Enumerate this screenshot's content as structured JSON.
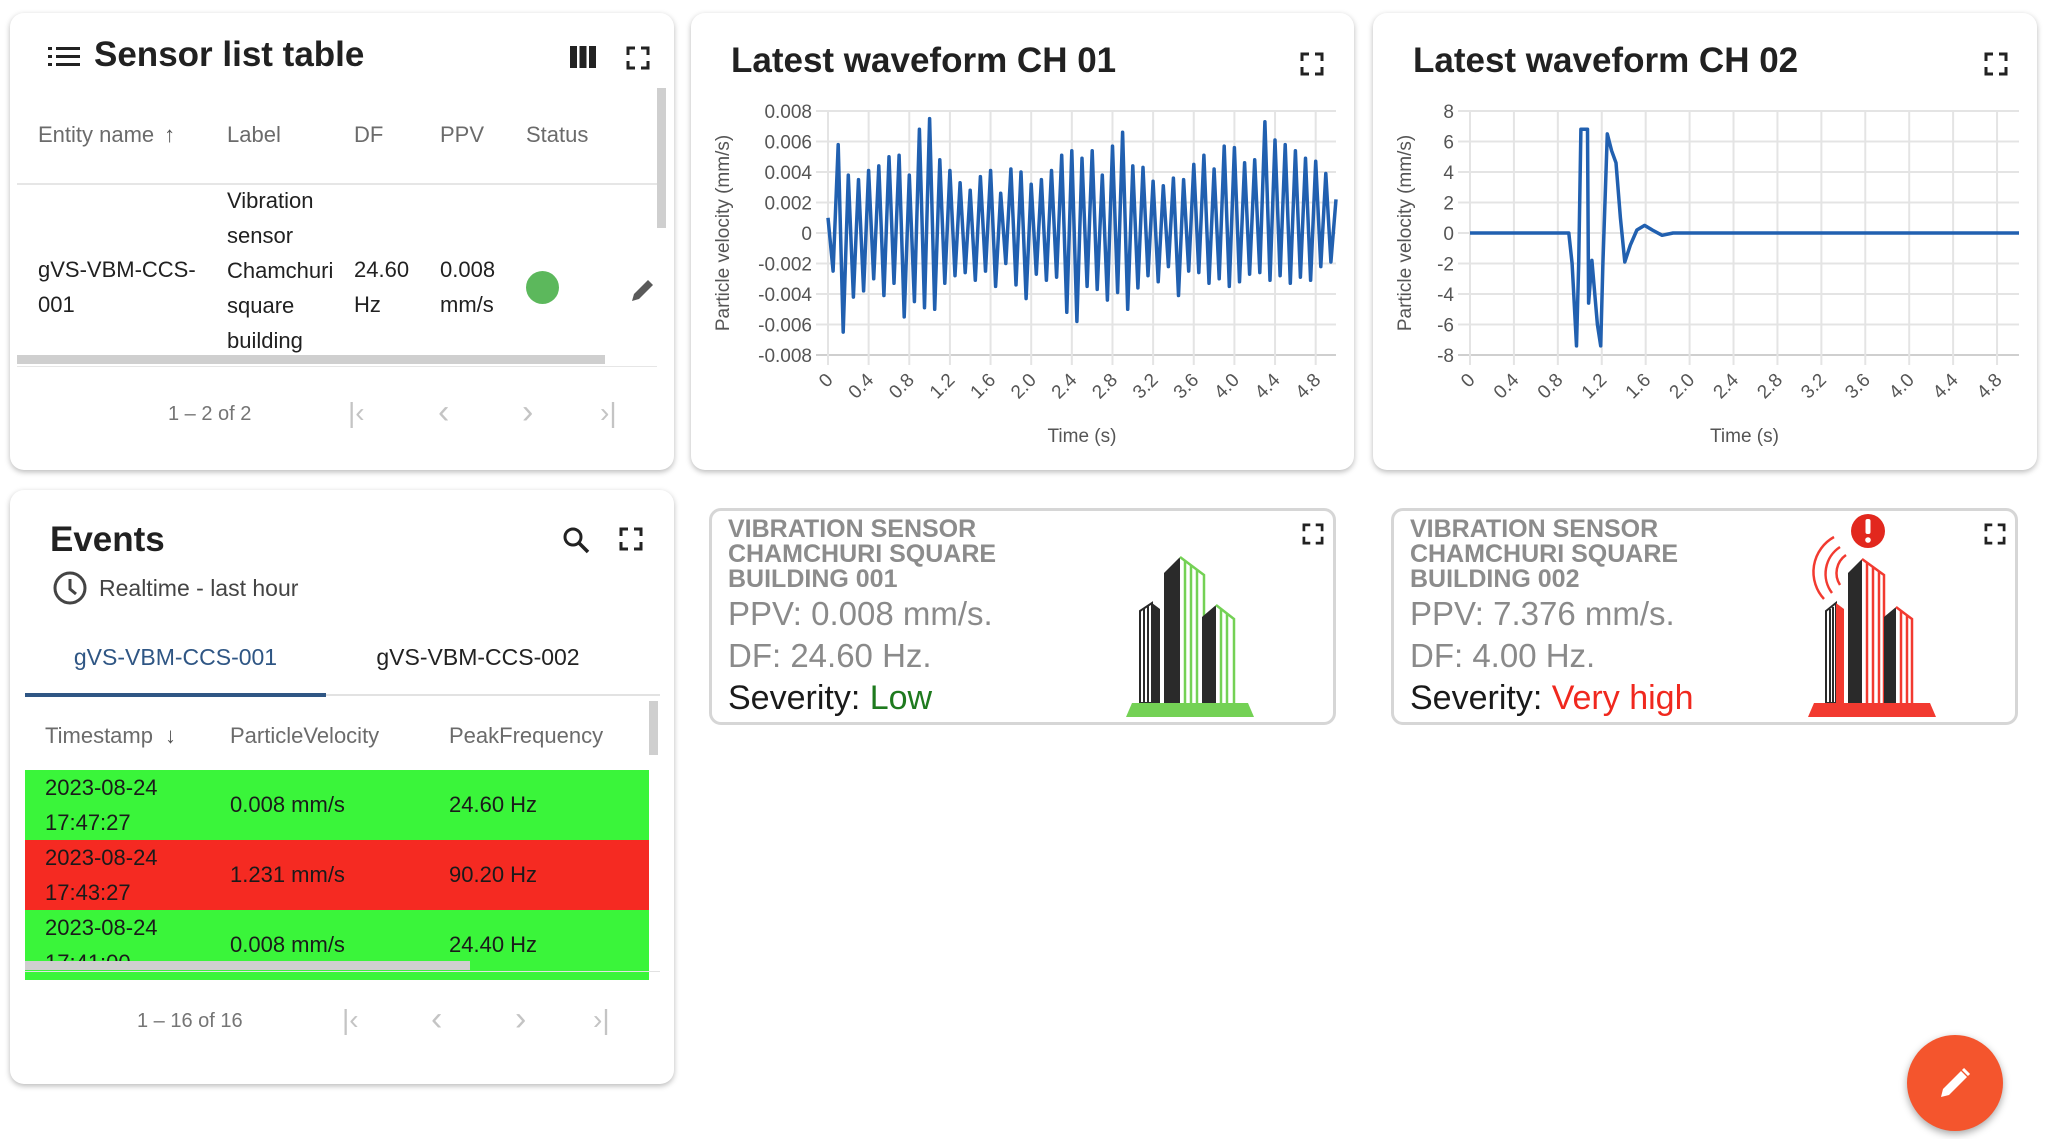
{
  "sensor_table": {
    "title": "Sensor list table",
    "columns": [
      "Entity name",
      "Label",
      "DF",
      "PPV",
      "Status"
    ],
    "sort": {
      "column": "Entity name",
      "direction": "ascending"
    },
    "rows": [
      {
        "entity_name": "gVS-VBM-CCS-001",
        "label": "Vibration sensor Chamchuri square building",
        "df": "24.60 Hz",
        "ppv": "0.008 mm/s",
        "status_color": "#5cb85c"
      }
    ],
    "pagination": "1 – 2 of 2"
  },
  "events": {
    "title": "Events",
    "timewindow": "Realtime - last hour",
    "tabs": [
      {
        "label": "gVS-VBM-CCS-001",
        "active": true
      },
      {
        "label": "gVS-VBM-CCS-002",
        "active": false
      }
    ],
    "columns": [
      "Timestamp",
      "ParticleVelocity",
      "PeakFrequency"
    ],
    "sort": {
      "column": "Timestamp",
      "direction": "descending"
    },
    "rows": [
      {
        "timestamp": "2023-08-24 17:47:27",
        "velocity": "0.008 mm/s",
        "frequency": "24.60 Hz",
        "color": "#3af53a"
      },
      {
        "timestamp": "2023-08-24 17:43:27",
        "velocity": "1.231 mm/s",
        "frequency": "90.20 Hz",
        "color": "#f52a22"
      },
      {
        "timestamp": "2023-08-24 17:41:00",
        "velocity": "0.008 mm/s",
        "frequency": "24.40 Hz",
        "color": "#3af53a"
      }
    ],
    "pagination": "1 – 16 of 16"
  },
  "status_cards": [
    {
      "title": "Vibration sensor Chamchuri square building 001",
      "ppv": "PPV: 0.008 mm/s.",
      "df": "DF: 24.60 Hz.",
      "severity_label": "Severity:",
      "severity": "Low",
      "severity_color": "#1e7a1e",
      "building_color": "#74d155",
      "alert": false
    },
    {
      "title": "Vibration sensor Chamchuri square building 002",
      "ppv": "PPV: 7.376 mm/s.",
      "df": "DF: 4.00 Hz.",
      "severity_label": "Severity:",
      "severity": "Very high",
      "severity_color": "#f0281e",
      "building_color": "#f23a30",
      "alert": true
    }
  ],
  "chart_data": [
    {
      "type": "line",
      "title": "Latest waveform CH 01",
      "xlabel": "Time (s)",
      "ylabel": "Particle velocity (mm/s)",
      "xlim": [
        0,
        5.0
      ],
      "ylim": [
        -0.008,
        0.008
      ],
      "xticks": [
        "0",
        "0.4",
        "0.8",
        "1.2",
        "1.6",
        "2.0",
        "2.4",
        "2.8",
        "3.2",
        "3.6",
        "4.0",
        "4.4",
        "4.8"
      ],
      "yticks": [
        "0.008",
        "0.006",
        "0.004",
        "0.002",
        "0",
        "-0.002",
        "-0.004",
        "-0.006",
        "-0.008"
      ],
      "grid": true,
      "color": "#2160b0",
      "x_step": 0.05,
      "y": [
        0.001,
        -0.0025,
        0.0058,
        -0.0065,
        0.0038,
        -0.0042,
        0.0035,
        -0.0038,
        0.0041,
        -0.003,
        0.0044,
        -0.0041,
        0.005,
        -0.0033,
        0.0051,
        -0.0055,
        0.0038,
        -0.0045,
        0.0068,
        -0.0049,
        0.0075,
        -0.005,
        0.0048,
        -0.0033,
        0.0041,
        -0.0028,
        0.0033,
        -0.0026,
        0.0028,
        -0.0031,
        0.0037,
        -0.0025,
        0.0041,
        -0.0035,
        0.0026,
        -0.002,
        0.0042,
        -0.0034,
        0.004,
        -0.0043,
        0.0032,
        -0.0027,
        0.0035,
        -0.0031,
        0.0041,
        -0.0029,
        0.0051,
        -0.0052,
        0.0054,
        -0.0058,
        0.0049,
        -0.0035,
        0.0054,
        -0.0037,
        0.0038,
        -0.0044,
        0.0057,
        -0.0039,
        0.0066,
        -0.005,
        0.0044,
        -0.0036,
        0.0043,
        -0.0028,
        0.0034,
        -0.0032,
        0.0031,
        -0.0022,
        0.0036,
        -0.0041,
        0.0035,
        -0.0025,
        0.0045,
        -0.0026,
        0.0051,
        -0.0033,
        0.0042,
        -0.003,
        0.0057,
        -0.0035,
        0.0056,
        -0.0032,
        0.0046,
        -0.0027,
        0.0048,
        -0.0026,
        0.0073,
        -0.0031,
        0.0061,
        -0.0028,
        0.0058,
        -0.0033,
        0.0054,
        -0.0029,
        0.0049,
        -0.0031,
        0.0047,
        -0.0022,
        0.0039,
        -0.0019,
        0.0022
      ]
    },
    {
      "type": "line",
      "title": "Latest waveform CH 02",
      "xlabel": "Time (s)",
      "ylabel": "Particle velocity (mm/s)",
      "xlim": [
        0,
        5.0
      ],
      "ylim": [
        -8,
        8
      ],
      "xticks": [
        "0",
        "0.4",
        "0.8",
        "1.2",
        "1.6",
        "2.0",
        "2.4",
        "2.8",
        "3.2",
        "3.6",
        "4.0",
        "4.4",
        "4.8"
      ],
      "yticks": [
        "8",
        "6",
        "4",
        "2",
        "0",
        "-2",
        "-4",
        "-6",
        "-8"
      ],
      "grid": true,
      "color": "#2160b0",
      "points": [
        [
          0,
          0
        ],
        [
          0.5,
          0
        ],
        [
          0.9,
          0
        ],
        [
          0.93,
          -2
        ],
        [
          0.97,
          -7.4
        ],
        [
          0.99,
          -2
        ],
        [
          1.01,
          6.8
        ],
        [
          1.07,
          6.8
        ],
        [
          1.08,
          -4.6
        ],
        [
          1.11,
          -1.8
        ],
        [
          1.16,
          -6
        ],
        [
          1.19,
          -7.4
        ],
        [
          1.21,
          -2
        ],
        [
          1.25,
          6.5
        ],
        [
          1.29,
          5.4
        ],
        [
          1.33,
          4.6
        ],
        [
          1.37,
          1
        ],
        [
          1.41,
          -1.9
        ],
        [
          1.46,
          -0.8
        ],
        [
          1.52,
          0.2
        ],
        [
          1.59,
          0.5
        ],
        [
          1.66,
          0.2
        ],
        [
          1.75,
          -0.15
        ],
        [
          1.85,
          0
        ],
        [
          2.5,
          0
        ],
        [
          3.5,
          0
        ],
        [
          4.2,
          0
        ],
        [
          5.0,
          0
        ]
      ]
    }
  ]
}
